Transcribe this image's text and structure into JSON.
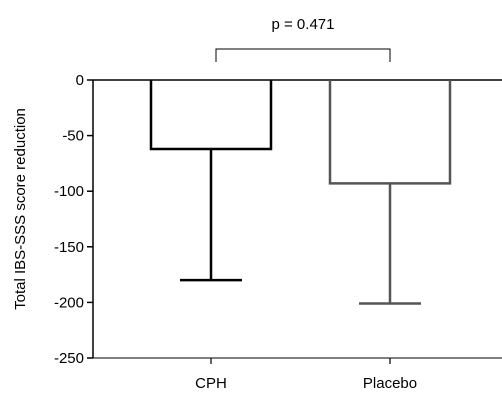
{
  "chart_data": {
    "type": "bar",
    "ylabel": "Total IBS-SSS score reduction",
    "xlabel": "",
    "ylim": [
      -250,
      0
    ],
    "yticks": [
      0,
      -50,
      -100,
      -150,
      -200,
      -250
    ],
    "categories": [
      "CPH",
      "Placebo"
    ],
    "series": [
      {
        "values": [
          -62,
          -93
        ],
        "error_lower": [
          -180,
          -201
        ],
        "colors": [
          "#000000",
          "#555555"
        ]
      }
    ],
    "annotation": {
      "text": "p = 0.471",
      "spans": [
        "CPH",
        "Placebo"
      ]
    },
    "grid": false,
    "legend": "none"
  }
}
